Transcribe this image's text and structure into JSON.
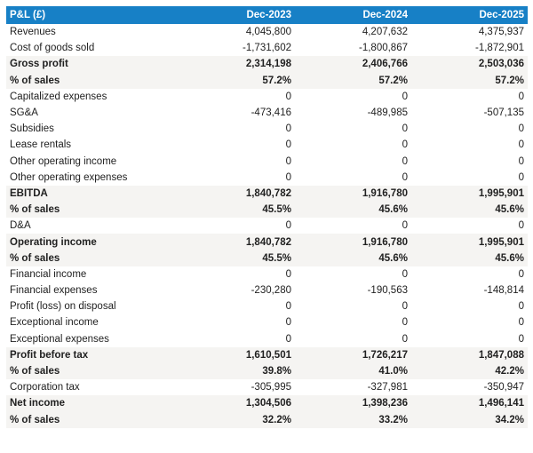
{
  "colors": {
    "header_bg": "#1780c6",
    "header_text": "#ffffff",
    "band_bg": "#f5f4f2",
    "text": "#212121",
    "page_bg": "#ffffff"
  },
  "table": {
    "columns": [
      "P&L (£)",
      "Dec-2023",
      "Dec-2024",
      "Dec-2025"
    ],
    "rows": [
      {
        "label": "Revenues",
        "values": [
          "4,045,800",
          "4,207,632",
          "4,375,937"
        ],
        "emphasis": false
      },
      {
        "label": "Cost of goods sold",
        "values": [
          "-1,731,602",
          "-1,800,867",
          "-1,872,901"
        ],
        "emphasis": false
      },
      {
        "label": "Gross profit",
        "values": [
          "2,314,198",
          "2,406,766",
          "2,503,036"
        ],
        "emphasis": true
      },
      {
        "label": "% of sales",
        "values": [
          "57.2%",
          "57.2%",
          "57.2%"
        ],
        "emphasis": true
      },
      {
        "label": "Capitalized expenses",
        "values": [
          "0",
          "0",
          "0"
        ],
        "emphasis": false
      },
      {
        "label": "SG&A",
        "values": [
          "-473,416",
          "-489,985",
          "-507,135"
        ],
        "emphasis": false
      },
      {
        "label": "Subsidies",
        "values": [
          "0",
          "0",
          "0"
        ],
        "emphasis": false
      },
      {
        "label": "Lease rentals",
        "values": [
          "0",
          "0",
          "0"
        ],
        "emphasis": false
      },
      {
        "label": "Other operating income",
        "values": [
          "0",
          "0",
          "0"
        ],
        "emphasis": false
      },
      {
        "label": "Other operating expenses",
        "values": [
          "0",
          "0",
          "0"
        ],
        "emphasis": false
      },
      {
        "label": "EBITDA",
        "values": [
          "1,840,782",
          "1,916,780",
          "1,995,901"
        ],
        "emphasis": true
      },
      {
        "label": "% of sales",
        "values": [
          "45.5%",
          "45.6%",
          "45.6%"
        ],
        "emphasis": true
      },
      {
        "label": "D&A",
        "values": [
          "0",
          "0",
          "0"
        ],
        "emphasis": false
      },
      {
        "label": "Operating income",
        "values": [
          "1,840,782",
          "1,916,780",
          "1,995,901"
        ],
        "emphasis": true
      },
      {
        "label": "% of sales",
        "values": [
          "45.5%",
          "45.6%",
          "45.6%"
        ],
        "emphasis": true
      },
      {
        "label": "Financial income",
        "values": [
          "0",
          "0",
          "0"
        ],
        "emphasis": false
      },
      {
        "label": "Financial expenses",
        "values": [
          "-230,280",
          "-190,563",
          "-148,814"
        ],
        "emphasis": false
      },
      {
        "label": "Profit (loss) on disposal",
        "values": [
          "0",
          "0",
          "0"
        ],
        "emphasis": false
      },
      {
        "label": "Exceptional income",
        "values": [
          "0",
          "0",
          "0"
        ],
        "emphasis": false
      },
      {
        "label": "Exceptional expenses",
        "values": [
          "0",
          "0",
          "0"
        ],
        "emphasis": false
      },
      {
        "label": "Profit before tax",
        "values": [
          "1,610,501",
          "1,726,217",
          "1,847,088"
        ],
        "emphasis": true
      },
      {
        "label": "% of sales",
        "values": [
          "39.8%",
          "41.0%",
          "42.2%"
        ],
        "emphasis": true
      },
      {
        "label": "Corporation tax",
        "values": [
          "-305,995",
          "-327,981",
          "-350,947"
        ],
        "emphasis": false
      },
      {
        "label": "Net income",
        "values": [
          "1,304,506",
          "1,398,236",
          "1,496,141"
        ],
        "emphasis": true
      },
      {
        "label": "% of sales",
        "values": [
          "32.2%",
          "33.2%",
          "34.2%"
        ],
        "emphasis": true
      }
    ]
  },
  "chart_data": {
    "type": "table",
    "title": "P&L (£)",
    "columns": [
      "Dec-2023",
      "Dec-2024",
      "Dec-2025"
    ],
    "rows": [
      {
        "label": "Revenues",
        "values": [
          4045800,
          4207632,
          4375937
        ]
      },
      {
        "label": "Cost of goods sold",
        "values": [
          -1731602,
          -1800867,
          -1872901
        ]
      },
      {
        "label": "Gross profit",
        "values": [
          2314198,
          2406766,
          2503036
        ]
      },
      {
        "label": "Gross profit % of sales",
        "values": [
          "57.2%",
          "57.2%",
          "57.2%"
        ]
      },
      {
        "label": "Capitalized expenses",
        "values": [
          0,
          0,
          0
        ]
      },
      {
        "label": "SG&A",
        "values": [
          -473416,
          -489985,
          -507135
        ]
      },
      {
        "label": "Subsidies",
        "values": [
          0,
          0,
          0
        ]
      },
      {
        "label": "Lease rentals",
        "values": [
          0,
          0,
          0
        ]
      },
      {
        "label": "Other operating income",
        "values": [
          0,
          0,
          0
        ]
      },
      {
        "label": "Other operating expenses",
        "values": [
          0,
          0,
          0
        ]
      },
      {
        "label": "EBITDA",
        "values": [
          1840782,
          1916780,
          1995901
        ]
      },
      {
        "label": "EBITDA % of sales",
        "values": [
          "45.5%",
          "45.6%",
          "45.6%"
        ]
      },
      {
        "label": "D&A",
        "values": [
          0,
          0,
          0
        ]
      },
      {
        "label": "Operating income",
        "values": [
          1840782,
          1916780,
          1995901
        ]
      },
      {
        "label": "Operating income % of sales",
        "values": [
          "45.5%",
          "45.6%",
          "45.6%"
        ]
      },
      {
        "label": "Financial income",
        "values": [
          0,
          0,
          0
        ]
      },
      {
        "label": "Financial expenses",
        "values": [
          -230280,
          -190563,
          -148814
        ]
      },
      {
        "label": "Profit (loss) on disposal",
        "values": [
          0,
          0,
          0
        ]
      },
      {
        "label": "Exceptional income",
        "values": [
          0,
          0,
          0
        ]
      },
      {
        "label": "Exceptional expenses",
        "values": [
          0,
          0,
          0
        ]
      },
      {
        "label": "Profit before tax",
        "values": [
          1610501,
          1726217,
          1847088
        ]
      },
      {
        "label": "Profit before tax % of sales",
        "values": [
          "39.8%",
          "41.0%",
          "42.2%"
        ]
      },
      {
        "label": "Corporation tax",
        "values": [
          -305995,
          -327981,
          -350947
        ]
      },
      {
        "label": "Net income",
        "values": [
          1304506,
          1398236,
          1496141
        ]
      },
      {
        "label": "Net income % of sales",
        "values": [
          "32.2%",
          "33.2%",
          "34.2%"
        ]
      }
    ]
  }
}
